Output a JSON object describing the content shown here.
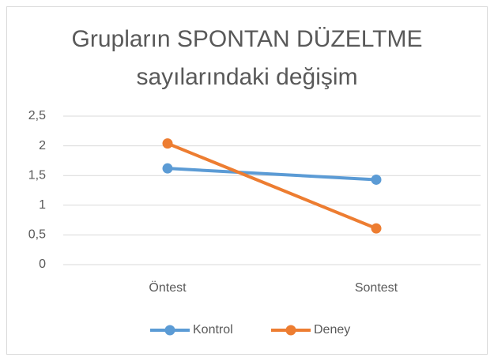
{
  "chart_data": {
    "type": "line",
    "title": "Grupların SPONTAN DÜZELTME sayılarındaki değişim",
    "categories": [
      "Öntest",
      "Sontest"
    ],
    "series": [
      {
        "name": "Kontrol",
        "color": "#5b9bd5",
        "values": [
          1.62,
          1.43
        ]
      },
      {
        "name": "Deney",
        "color": "#ed7d31",
        "values": [
          2.04,
          0.61
        ]
      }
    ],
    "ylim": [
      0,
      2.5
    ],
    "yticks": [
      0,
      {
        "value": 0.5,
        "label": "0,5"
      },
      1,
      {
        "value": 1.5,
        "label": "1,5"
      },
      2,
      {
        "value": 2.5,
        "label": "2,5"
      }
    ],
    "grid": true,
    "legend": "bottom"
  }
}
